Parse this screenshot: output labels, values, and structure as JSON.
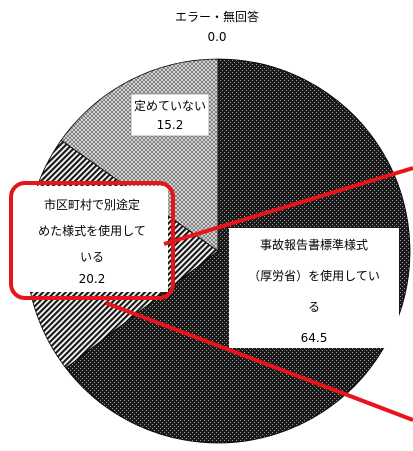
{
  "chart_data": {
    "type": "pie",
    "title": "",
    "slices": [
      {
        "label": "事故報告書標準様式（厚労省）を使用している",
        "value": 64.5,
        "pattern": "dense-checker-dark"
      },
      {
        "label": "市区町村で別途定めた様式を使用している",
        "value": 20.2,
        "pattern": "diagonal-stripes"
      },
      {
        "label": "定めていない",
        "value": 15.2,
        "pattern": "light-crosshatch"
      },
      {
        "label": "エラー・無回答",
        "value": 0.0,
        "pattern": "none"
      }
    ],
    "labels": {
      "s0": {
        "lines": [
          "事故報告書標準様式",
          "（厚労省）を使用してい",
          "る"
        ],
        "value": "64.5"
      },
      "s1": {
        "lines": [
          "市区町村で別途定",
          "めた様式を使用して",
          "いる"
        ],
        "value": "20.2"
      },
      "s2": {
        "lines": [
          "定めていない"
        ],
        "value": "15.2"
      },
      "s3": {
        "lines": [
          "エラー・無回答"
        ],
        "value": "0.0"
      }
    },
    "highlight_color": "#e8141b"
  }
}
